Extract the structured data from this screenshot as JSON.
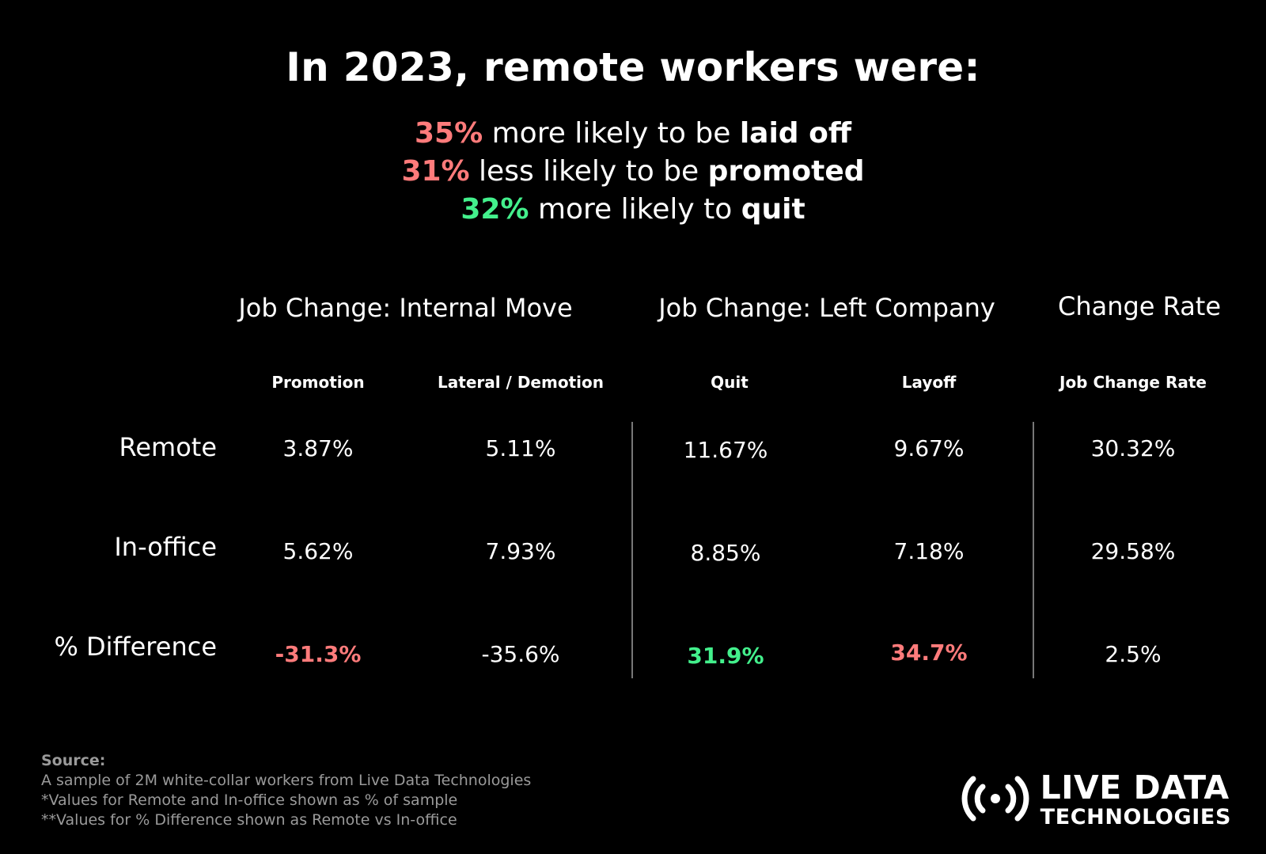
{
  "headline": "In 2023, remote workers were:",
  "stats": [
    {
      "value": "35%",
      "text": " more likely to be ",
      "emphasis": "laid off",
      "color": "#ff7b7b"
    },
    {
      "value": "31%",
      "text": " less likely to be ",
      "emphasis": "promoted",
      "color": "#ff7b7b"
    },
    {
      "value": "32%",
      "text": " more likely to ",
      "emphasis": "quit",
      "color": "#43f08c"
    }
  ],
  "table": {
    "groups": [
      "Job Change: Internal Move",
      "Job Change: Left Company",
      "Change Rate"
    ],
    "columns": [
      "Promotion",
      "Lateral / Demotion",
      "Quit",
      "Layoff",
      "Job Change Rate"
    ],
    "rows": [
      {
        "label": "Remote",
        "values": [
          "3.87%",
          "5.11%",
          "11.67%",
          "9.67%",
          "30.32%"
        ]
      },
      {
        "label": "In-office",
        "values": [
          "5.62%",
          "7.93%",
          "8.85%",
          "7.18%",
          "29.58%"
        ]
      },
      {
        "label": "% Difference",
        "values": [
          "-31.3%",
          "-35.6%",
          "31.9%",
          "34.7%",
          "2.5%"
        ]
      }
    ]
  },
  "colors": {
    "negative": "#ff7b7b",
    "positive": "#43f08c",
    "background": "#000000",
    "text": "#ffffff",
    "muted": "#9a9a9a"
  },
  "source": {
    "heading": "Source:",
    "lines": [
      "A sample of 2M white-collar workers from Live Data Technologies",
      "*Values for Remote and In-office shown as % of sample",
      "**Values for % Difference shown as Remote vs In-office"
    ]
  },
  "logo": {
    "line1": "LIVE DATA",
    "line2": "TECHNOLOGIES",
    "icon": "broadcast-icon"
  }
}
